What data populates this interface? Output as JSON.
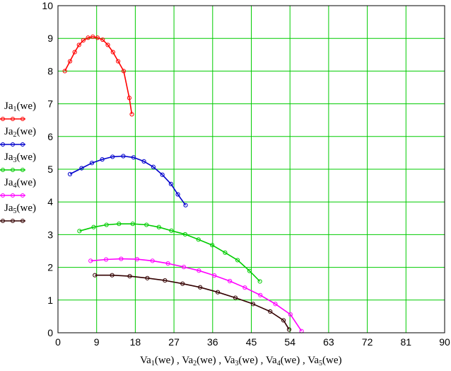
{
  "chart_data": {
    "type": "line",
    "xlim": [
      0,
      90
    ],
    "ylim": [
      0,
      10
    ],
    "x_ticks": [
      0,
      9,
      18,
      27,
      36,
      45,
      54,
      63,
      72,
      81,
      90
    ],
    "y_ticks": [
      0,
      1,
      2,
      3,
      4,
      5,
      6,
      7,
      8,
      9,
      10
    ],
    "grid": true,
    "grid_color": "#00cc00",
    "xlabel_parts": [
      {
        "name": "Va",
        "sub": "1",
        "arg": "(we)"
      },
      {
        "name": "Va",
        "sub": "2",
        "arg": "(we)"
      },
      {
        "name": "Va",
        "sub": "3",
        "arg": "(we)"
      },
      {
        "name": "Va",
        "sub": "4",
        "arg": "(we)"
      },
      {
        "name": "Va",
        "sub": "5",
        "arg": "(we)"
      }
    ],
    "legend_position": "left",
    "series": [
      {
        "name": "Ja",
        "sub": "1",
        "arg": "(we)",
        "color": "#ff0000",
        "x": [
          1.6,
          2.8,
          3.9,
          4.9,
          5.9,
          7.0,
          8.1,
          9.2,
          10.4,
          11.6,
          12.8,
          14.0,
          15.3,
          16.6,
          17.2
        ],
        "y": [
          8.0,
          8.3,
          8.58,
          8.8,
          8.94,
          9.02,
          9.05,
          9.02,
          8.96,
          8.8,
          8.58,
          8.3,
          8.0,
          7.18,
          6.68
        ]
      },
      {
        "name": "Ja",
        "sub": "2",
        "arg": "(we)",
        "color": "#0000cc",
        "x": [
          2.8,
          5.5,
          7.9,
          10.3,
          12.7,
          15.2,
          17.6,
          20.0,
          22.2,
          24.3,
          26.3,
          27.9,
          29.7
        ],
        "y": [
          4.85,
          5.03,
          5.19,
          5.3,
          5.38,
          5.4,
          5.36,
          5.24,
          5.07,
          4.83,
          4.55,
          4.23,
          3.9
        ]
      },
      {
        "name": "Ja",
        "sub": "3",
        "arg": "(we)",
        "color": "#00cc00",
        "x": [
          5.0,
          8.3,
          11.3,
          14.2,
          17.4,
          20.6,
          23.5,
          26.4,
          29.6,
          32.7,
          35.9,
          38.9,
          41.8,
          44.6,
          47.0
        ],
        "y": [
          3.11,
          3.23,
          3.3,
          3.33,
          3.33,
          3.3,
          3.23,
          3.12,
          3.01,
          2.85,
          2.68,
          2.45,
          2.22,
          1.89,
          1.57
        ]
      },
      {
        "name": "Ja",
        "sub": "4",
        "arg": "(we)",
        "color": "#ff00ff",
        "x": [
          7.6,
          11.2,
          14.7,
          18.4,
          22.0,
          25.6,
          29.3,
          32.8,
          36.4,
          40.0,
          43.5,
          47.1,
          50.6,
          54.1,
          56.7
        ],
        "y": [
          2.2,
          2.24,
          2.26,
          2.25,
          2.2,
          2.12,
          2.01,
          1.9,
          1.75,
          1.58,
          1.38,
          1.15,
          0.88,
          0.56,
          0.05
        ]
      },
      {
        "name": "Ja",
        "sub": "5",
        "arg": "(we)",
        "color": "#330000",
        "x": [
          8.6,
          12.6,
          16.7,
          20.8,
          24.9,
          29.0,
          33.1,
          37.2,
          41.3,
          45.4,
          49.4,
          52.5,
          53.8
        ],
        "y": [
          1.76,
          1.76,
          1.73,
          1.67,
          1.6,
          1.5,
          1.39,
          1.24,
          1.07,
          0.88,
          0.65,
          0.38,
          0.1
        ]
      }
    ]
  }
}
